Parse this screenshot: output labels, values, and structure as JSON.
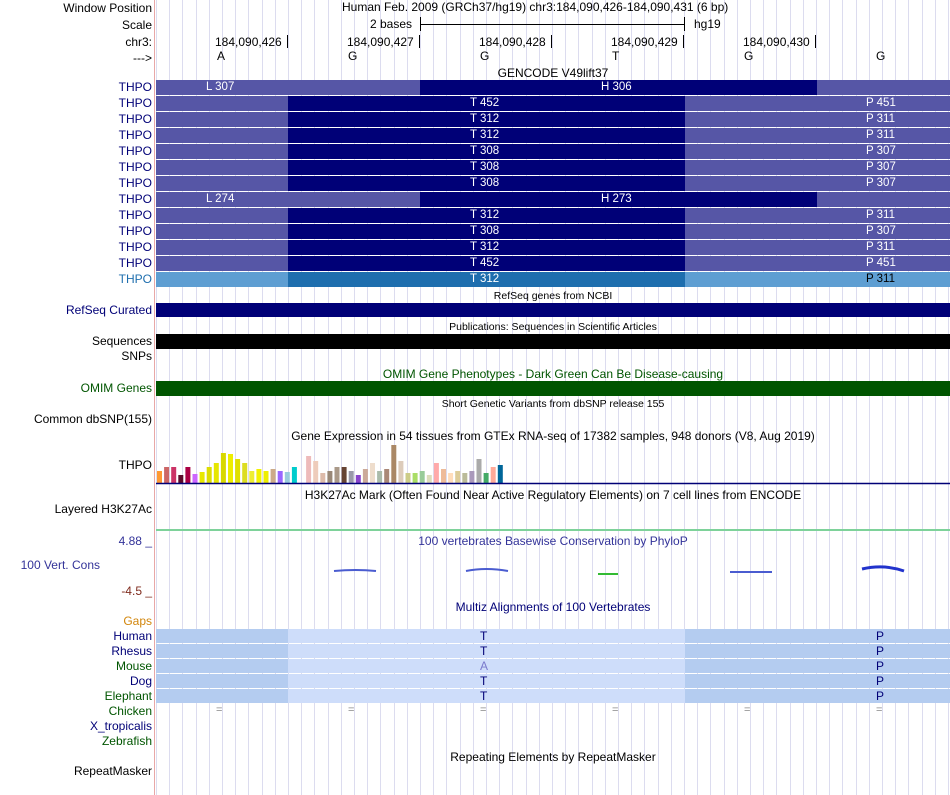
{
  "header": {
    "window_position_label": "Window Position",
    "window_position_value": "Human Feb. 2009 (GRCh37/hg19)   chr3:184,090,426-184,090,431 (6 bp)",
    "scale_label": "Scale",
    "scale_value": "2 bases",
    "assembly": "hg19",
    "chrom_label": "chr3:",
    "strand_label": "--->",
    "positions": [
      "184,090,426",
      "184,090,427",
      "184,090,428",
      "184,090,429",
      "184,090,430"
    ],
    "bases": [
      "A",
      "G",
      "G",
      "T",
      "G",
      "G"
    ]
  },
  "gencode": {
    "title": "GENCODE V49lift37",
    "gene_label": "THPO",
    "rows": [
      [
        "L 307",
        "H 306",
        ""
      ],
      [
        "",
        "T 452",
        "P 451"
      ],
      [
        "",
        "T 312",
        "P 311"
      ],
      [
        "",
        "T 312",
        "P 311"
      ],
      [
        "",
        "T 308",
        "P 307"
      ],
      [
        "",
        "T 308",
        "P 307"
      ],
      [
        "",
        "T 308",
        "P 307"
      ],
      [
        "L 274",
        "H 273",
        ""
      ],
      [
        "",
        "T 312",
        "P 311"
      ],
      [
        "",
        "T 308",
        "P 307"
      ],
      [
        "",
        "T 312",
        "P 311"
      ],
      [
        "",
        "T 452",
        "P 451"
      ],
      [
        "",
        "T 312",
        "P 311"
      ]
    ]
  },
  "refseq": {
    "title": "RefSeq genes from NCBI",
    "label": "RefSeq Curated"
  },
  "publications": {
    "title": "Publications: Sequences in Scientific Articles",
    "label": "Sequences"
  },
  "snps": {
    "label": "SNPs"
  },
  "omim": {
    "title": "OMIM Gene Phenotypes - Dark Green Can Be Disease-causing",
    "label": "OMIM Genes"
  },
  "dbsnp": {
    "title": "Short Genetic Variants from dbSNP release 155",
    "label": "Common dbSNP(155)"
  },
  "gtex": {
    "title": "Gene Expression in 54 tissues from GTEx RNA-seq of 17382 samples, 948 donors (V8, Aug 2019)",
    "label": "THPO"
  },
  "h3k27ac": {
    "title": "H3K27Ac Mark (Often Found Near Active Regulatory Elements) on 7 cell lines from ENCODE",
    "label": "Layered H3K27Ac"
  },
  "conservation": {
    "title": "100 vertebrates Basewise Conservation by PhyloP",
    "label": "100 Vert. Cons",
    "max": "4.88 _",
    "min": "-4.5 _"
  },
  "multiz": {
    "title": "Multiz Alignments of 100 Vertebrates",
    "gaps_label": "Gaps",
    "species": [
      {
        "name": "Human",
        "mid": "T",
        "right": "P"
      },
      {
        "name": "Rhesus",
        "mid": "T",
        "right": "P"
      },
      {
        "name": "Mouse",
        "mid": "A",
        "right": "P"
      },
      {
        "name": "Dog",
        "mid": "T",
        "right": "P"
      },
      {
        "name": "Elephant",
        "mid": "T",
        "right": "P"
      }
    ],
    "lower_species": [
      "Chicken",
      "X_tropicalis",
      "Zebrafish"
    ],
    "gap_mark": "="
  },
  "repeatmasker": {
    "title": "Repeating Elements by RepeatMasker",
    "label": "RepeatMasker"
  },
  "colors": {
    "gene_navy": "#000077",
    "gene_light": "#5656A6",
    "gene_selected": "#1E6EAE",
    "gene_selected_light": "#5E9ED2",
    "omim_green": "#005500",
    "gaps_orange": "#D2860C",
    "cons_red": "#7F2B1D",
    "align_blue": "#B4CCF0",
    "align_light": "#CEDDFA"
  }
}
